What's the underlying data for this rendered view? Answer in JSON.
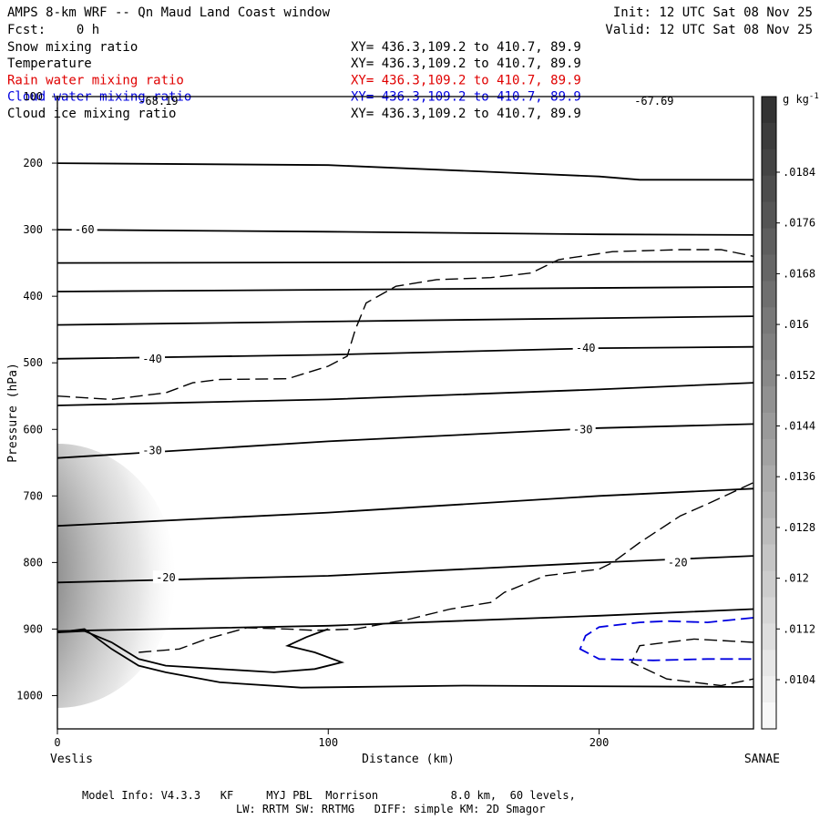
{
  "header": {
    "title": "AMPS 8-km WRF -- Qn Maud Land Coast window",
    "fcst": "Fcst:    0 h",
    "init": "Init: 12 UTC Sat 08 Nov 25",
    "valid": "Valid: 12 UTC Sat 08 Nov 25",
    "fields": [
      {
        "name": "Snow mixing ratio",
        "xy": "XY= 436.3,109.2 to 410.7, 89.9",
        "color": "#000000"
      },
      {
        "name": "Temperature",
        "xy": "XY= 436.3,109.2 to 410.7, 89.9",
        "color": "#000000"
      },
      {
        "name": "Rain water mixing ratio",
        "xy": "XY= 436.3,109.2 to 410.7, 89.9",
        "color": "#e00000"
      },
      {
        "name": "Cloud water mixing ratio",
        "xy": "XY= 436.3,109.2 to 410.7, 89.9",
        "color": "#0000e0"
      },
      {
        "name": "Cloud ice mixing ratio",
        "xy": "XY= 436.3,109.2 to 410.7, 89.9",
        "color": "#000000"
      }
    ]
  },
  "chart_data": {
    "type": "cross-section",
    "title": "AMPS 8-km WRF -- Qn Maud Land Coast window",
    "xlabel": "Distance (km)",
    "ylabel": "Pressure (hPa)",
    "xlim": [
      0,
      257
    ],
    "ylim": [
      1050,
      100
    ],
    "x_ticks": [
      0,
      100,
      200
    ],
    "y_ticks": [
      100,
      200,
      300,
      400,
      500,
      600,
      700,
      800,
      900,
      1000
    ],
    "x_start_label": "Veslis",
    "x_end_label": "SANAE",
    "extreme_labels": [
      {
        "text": "-68.19",
        "x": 30,
        "p": 112
      },
      {
        "text": "-67.69",
        "x": 213,
        "p": 112
      }
    ],
    "colorbar": {
      "unit": "g kg",
      "unit_exp": "-1",
      "ticks": [
        ".0184",
        ".0176",
        ".0168",
        ".016",
        ".0152",
        ".0144",
        ".0136",
        ".0128",
        ".012",
        ".0112",
        ".0104"
      ]
    },
    "snow_blob": {
      "x": 0,
      "p": 820,
      "max_gkg": 0.0184
    },
    "temperature_isotherms": [
      {
        "points": [
          [
            0,
            200
          ],
          [
            100,
            203
          ],
          [
            200,
            220
          ],
          [
            215,
            225
          ],
          [
            257,
            225
          ]
        ]
      },
      {
        "label": "-60",
        "label_at": [
          10,
          300
        ],
        "points": [
          [
            0,
            300
          ],
          [
            100,
            303
          ],
          [
            200,
            307
          ],
          [
            257,
            308
          ]
        ]
      },
      {
        "points": [
          [
            0,
            350
          ],
          [
            257,
            348
          ]
        ]
      },
      {
        "points": [
          [
            0,
            393
          ],
          [
            257,
            386
          ]
        ]
      },
      {
        "points": [
          [
            0,
            443
          ],
          [
            257,
            430
          ]
        ]
      },
      {
        "label": "-40",
        "label_at": [
          35,
          494
        ],
        "label2": "-40",
        "label2_at": [
          195,
          478
        ],
        "points": [
          [
            0,
            494
          ],
          [
            100,
            488
          ],
          [
            200,
            478
          ],
          [
            257,
            476
          ]
        ]
      },
      {
        "points": [
          [
            0,
            564
          ],
          [
            100,
            555
          ],
          [
            200,
            540
          ],
          [
            257,
            530
          ]
        ]
      },
      {
        "label": "-30",
        "label_at": [
          35,
          632
        ],
        "label2": "-30",
        "label2_at": [
          194,
          600
        ],
        "points": [
          [
            0,
            643
          ],
          [
            100,
            618
          ],
          [
            200,
            598
          ],
          [
            257,
            592
          ]
        ]
      },
      {
        "points": [
          [
            0,
            745
          ],
          [
            100,
            725
          ],
          [
            200,
            700
          ],
          [
            257,
            689
          ]
        ]
      },
      {
        "label": "-20",
        "label_at": [
          40,
          823
        ],
        "label2": "-20",
        "label2_at": [
          229,
          800
        ],
        "points": [
          [
            0,
            830
          ],
          [
            100,
            820
          ],
          [
            200,
            800
          ],
          [
            257,
            790
          ]
        ]
      },
      {
        "points": [
          [
            0,
            903
          ],
          [
            100,
            895
          ],
          [
            200,
            880
          ],
          [
            257,
            870
          ]
        ]
      }
    ],
    "cloud_ice_contours": [
      {
        "points": [
          [
            0,
            550
          ],
          [
            20,
            555
          ],
          [
            40,
            545
          ],
          [
            50,
            530
          ],
          [
            60,
            525
          ],
          [
            85,
            524
          ],
          [
            100,
            505
          ],
          [
            107,
            490
          ],
          [
            110,
            450
          ],
          [
            114,
            410
          ],
          [
            125,
            385
          ],
          [
            140,
            375
          ],
          [
            160,
            372
          ],
          [
            175,
            365
          ],
          [
            185,
            345
          ],
          [
            205,
            333
          ],
          [
            230,
            330
          ],
          [
            245,
            330
          ],
          [
            257,
            340
          ]
        ]
      },
      {
        "points": [
          [
            30,
            935
          ],
          [
            45,
            930
          ],
          [
            55,
            915
          ],
          [
            70,
            898
          ],
          [
            85,
            900
          ],
          [
            95,
            902
          ],
          [
            110,
            900
          ],
          [
            130,
            885
          ],
          [
            145,
            870
          ],
          [
            160,
            860
          ],
          [
            165,
            845
          ],
          [
            180,
            820
          ],
          [
            200,
            810
          ],
          [
            205,
            800
          ],
          [
            215,
            770
          ],
          [
            230,
            730
          ],
          [
            240,
            712
          ],
          [
            257,
            680
          ]
        ]
      },
      {
        "points": [
          [
            257,
            920
          ],
          [
            235,
            915
          ],
          [
            215,
            925
          ],
          [
            212,
            950
          ],
          [
            225,
            975
          ],
          [
            245,
            985
          ],
          [
            257,
            975
          ]
        ]
      }
    ],
    "cloud_water_contours": [
      {
        "points": [
          [
            257,
            883
          ],
          [
            240,
            890
          ],
          [
            225,
            888
          ],
          [
            215,
            890
          ],
          [
            200,
            897
          ],
          [
            195,
            910
          ],
          [
            193,
            930
          ],
          [
            200,
            945
          ],
          [
            220,
            947
          ],
          [
            240,
            945
          ],
          [
            257,
            945
          ]
        ]
      }
    ],
    "solid_loops": [
      {
        "points": [
          [
            0,
            905
          ],
          [
            10,
            903
          ],
          [
            20,
            920
          ],
          [
            30,
            945
          ],
          [
            40,
            955
          ],
          [
            60,
            960
          ],
          [
            80,
            965
          ],
          [
            95,
            960
          ],
          [
            105,
            950
          ],
          [
            95,
            935
          ],
          [
            85,
            925
          ],
          [
            92,
            912
          ],
          [
            100,
            900
          ]
        ]
      },
      {
        "points": [
          [
            0,
            905
          ],
          [
            10,
            900
          ],
          [
            20,
            930
          ],
          [
            30,
            955
          ],
          [
            40,
            965
          ],
          [
            60,
            980
          ],
          [
            90,
            988
          ],
          [
            150,
            985
          ],
          [
            257,
            987
          ]
        ]
      }
    ]
  },
  "footer": {
    "model_info": "Model Info: V4.3.3   KF     MYJ PBL  Morrison           8.0 km,  60 levels,",
    "physics": "LW: RRTM SW: RRTMG   DIFF: simple KM: 2D Smagor"
  }
}
